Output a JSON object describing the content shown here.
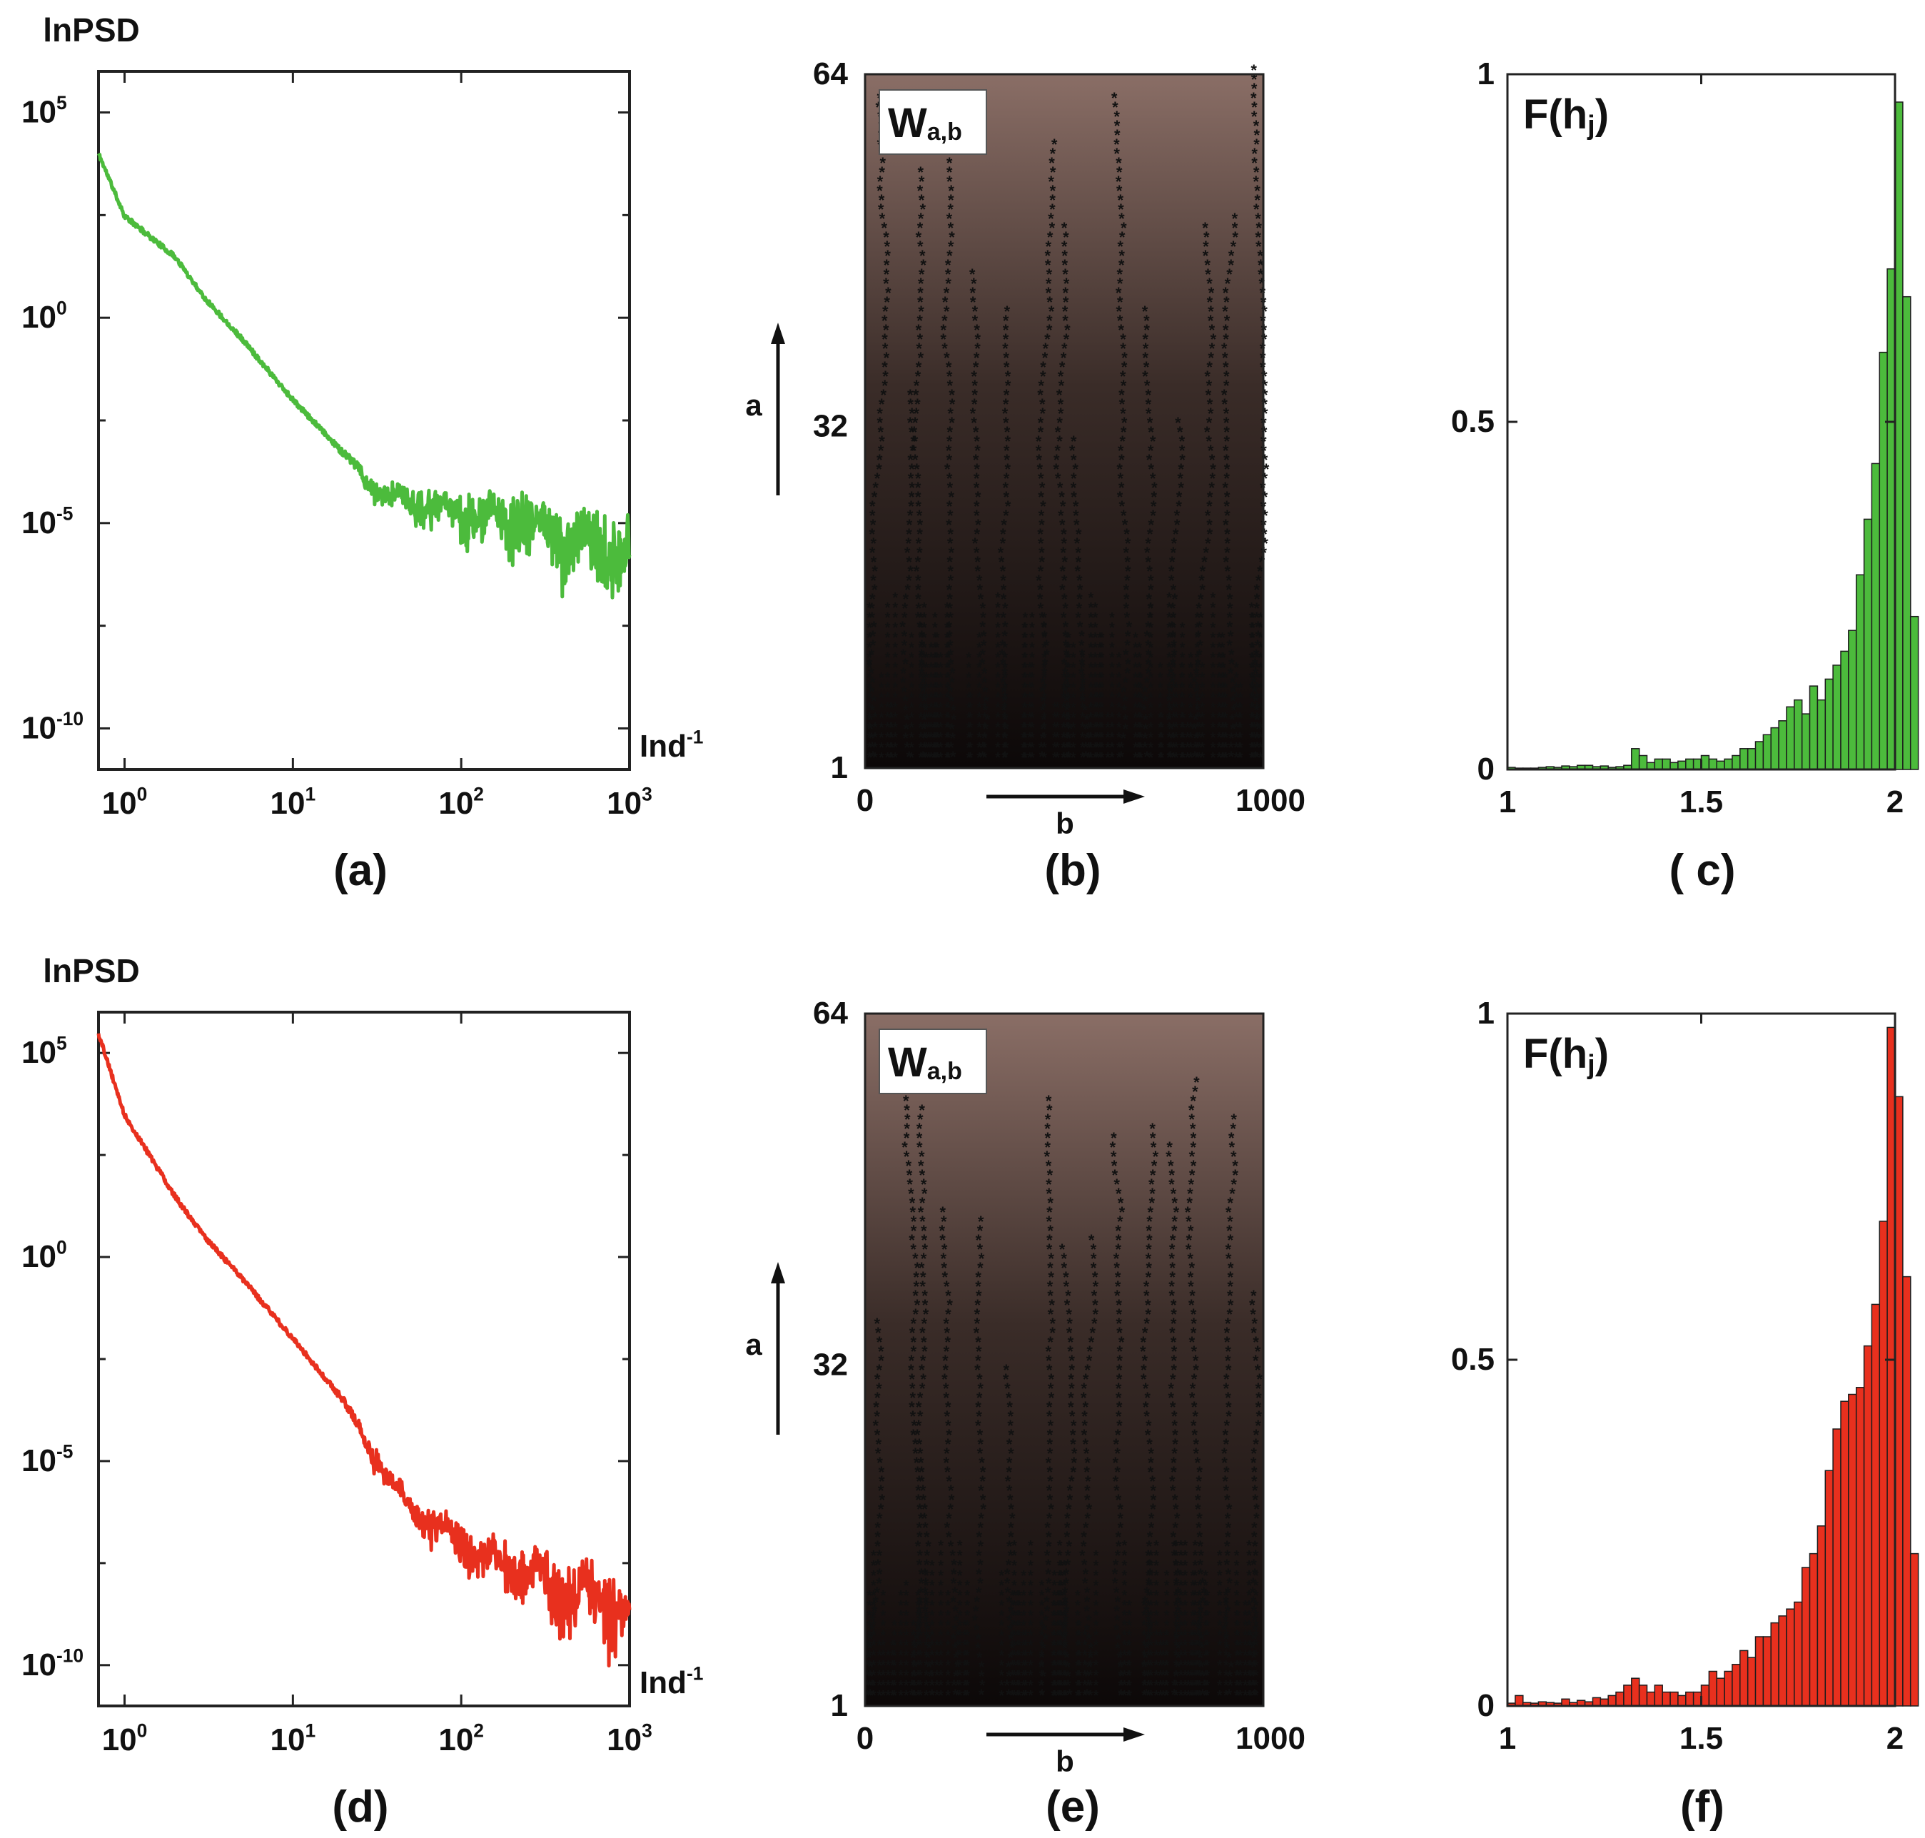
{
  "figure": {
    "panel_labels": [
      "(a)",
      "(b)",
      "( c)",
      "(d)",
      "(e)",
      "(f)"
    ]
  },
  "chart_data": [
    {
      "id": "a",
      "type": "line",
      "title": "",
      "ylabel": "lnPSD",
      "xlabel": "Ind-1",
      "xscale": "log",
      "yscale": "log",
      "xlim": [
        0.7,
        1000
      ],
      "ylim": [
        1e-11,
        1000000.0
      ],
      "xticks": [
        "10^0",
        "10^1",
        "10^2",
        "10^3"
      ],
      "yticks": [
        "10^5",
        "10^0",
        "10^-5",
        "10^-10"
      ],
      "color": "#4cbb3c",
      "series": [
        {
          "name": "PSD",
          "x": [
            0.7,
            1,
            2,
            3,
            5,
            10,
            20,
            30,
            50,
            100,
            200,
            300,
            500,
            700,
            1000
          ],
          "y": [
            10000.0,
            300.0,
            30.0,
            3,
            0.3,
            0.01,
            0.0005,
            0.0001,
            5e-05,
            3e-05,
            3e-05,
            2e-05,
            1e-05,
            8e-06,
            5e-06
          ]
        }
      ]
    },
    {
      "id": "b",
      "type": "heatmap",
      "title": "W_{a,b}",
      "legend_label": "W",
      "legend_sub": "a,b",
      "xlabel": "b",
      "ylabel": "a",
      "xlim": [
        0,
        1000
      ],
      "ylim": [
        1,
        64
      ],
      "xticks": [
        "0",
        "1000"
      ],
      "yticks": [
        "64",
        "32",
        "1"
      ],
      "marker_colors": [
        "#e8301e",
        "#3f2fd2"
      ]
    },
    {
      "id": "c",
      "type": "bar",
      "title": "F(h_j)",
      "legend_label": "F(h",
      "legend_sub": "j",
      "legend_suffix": ")",
      "xlim": [
        1,
        2
      ],
      "ylim": [
        0,
        1
      ],
      "xticks": [
        "1",
        "1.5",
        "2"
      ],
      "yticks": [
        "1",
        "0.5",
        "0"
      ],
      "color": "#4cbb3c",
      "bin_start": 1.0,
      "bin_width": 0.02,
      "values": [
        0.003,
        0.002,
        0.002,
        0.002,
        0.003,
        0.004,
        0.003,
        0.005,
        0.004,
        0.006,
        0.006,
        0.004,
        0.005,
        0.003,
        0.004,
        0.006,
        0.03,
        0.02,
        0.01,
        0.015,
        0.015,
        0.01,
        0.012,
        0.015,
        0.015,
        0.02,
        0.015,
        0.012,
        0.015,
        0.02,
        0.03,
        0.03,
        0.04,
        0.05,
        0.06,
        0.07,
        0.09,
        0.1,
        0.08,
        0.12,
        0.1,
        0.13,
        0.15,
        0.17,
        0.2,
        0.28,
        0.36,
        0.44,
        0.6,
        0.72,
        0.96,
        0.68,
        0.22,
        0.0
      ]
    },
    {
      "id": "d",
      "type": "line",
      "title": "",
      "ylabel": "lnPSD",
      "xlabel": "Ind-1",
      "xscale": "log",
      "yscale": "log",
      "xlim": [
        0.7,
        1000
      ],
      "ylim": [
        1e-11,
        1000000.0
      ],
      "xticks": [
        "10^0",
        "10^1",
        "10^2",
        "10^3"
      ],
      "yticks": [
        "10^5",
        "10^0",
        "10^-5",
        "10^-10"
      ],
      "color": "#e8301e",
      "series": [
        {
          "name": "PSD",
          "x": [
            0.7,
            1,
            2,
            3,
            5,
            10,
            20,
            30,
            50,
            100,
            200,
            300,
            500,
            700,
            1000
          ],
          "y": [
            300000.0,
            3000.0,
            30.0,
            3,
            0.3,
            0.01,
            0.0003,
            2e-05,
            1e-06,
            2e-07,
            5e-08,
            3e-08,
            2e-08,
            1.5e-08,
            5e-09
          ]
        }
      ]
    },
    {
      "id": "e",
      "type": "heatmap",
      "title": "W_{a,b}",
      "legend_label": "W",
      "legend_sub": "a,b",
      "xlabel": "b",
      "ylabel": "a",
      "xlim": [
        0,
        1000
      ],
      "ylim": [
        1,
        64
      ],
      "xticks": [
        "0",
        "1000"
      ],
      "yticks": [
        "64",
        "32",
        "1"
      ],
      "marker_colors": [
        "#e8301e",
        "#3f2fd2"
      ]
    },
    {
      "id": "f",
      "type": "bar",
      "title": "F(h_j)",
      "legend_label": "F(h",
      "legend_sub": "j",
      "legend_suffix": ")",
      "xlim": [
        1,
        2
      ],
      "ylim": [
        0,
        1
      ],
      "xticks": [
        "1",
        "1.5",
        "2"
      ],
      "yticks": [
        "1",
        "0.5",
        "0"
      ],
      "color": "#e8301e",
      "bin_start": 1.0,
      "bin_width": 0.02,
      "values": [
        0.004,
        0.015,
        0.005,
        0.004,
        0.006,
        0.005,
        0.004,
        0.01,
        0.005,
        0.008,
        0.006,
        0.012,
        0.01,
        0.015,
        0.02,
        0.03,
        0.04,
        0.03,
        0.02,
        0.03,
        0.02,
        0.02,
        0.015,
        0.02,
        0.02,
        0.03,
        0.05,
        0.04,
        0.05,
        0.06,
        0.08,
        0.07,
        0.1,
        0.1,
        0.12,
        0.13,
        0.14,
        0.15,
        0.2,
        0.22,
        0.26,
        0.34,
        0.4,
        0.44,
        0.45,
        0.46,
        0.52,
        0.58,
        0.7,
        0.98,
        0.88,
        0.62,
        0.22,
        0.0
      ]
    }
  ]
}
